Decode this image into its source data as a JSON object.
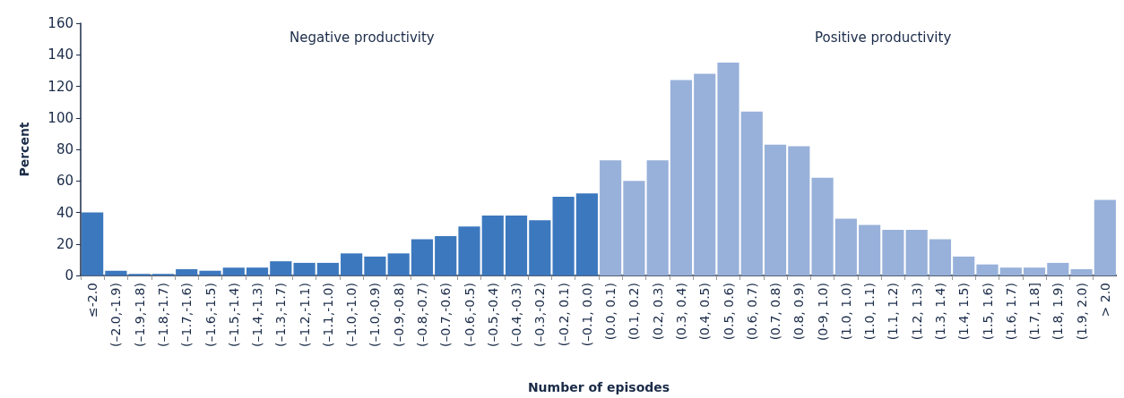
{
  "chart_data": {
    "type": "bar",
    "xlabel": "Number of episodes",
    "ylabel": "Percent",
    "annotations": [
      "Negative productivity",
      "Positive productivity"
    ],
    "categories": [
      "≤-2.0",
      "(–2.0,-1.9)",
      "(–1.9,-1.8)",
      "(–1.8,-1.7)",
      "(–1.7,-1.6)",
      "(–1.6,-1.5)",
      "(–1.5,-1.4)",
      "(–1.4,-1.3)",
      "(–1.3,-1.7)",
      "(–1.2,-1.1)",
      "(–1.1,-1.0)",
      "(–1.0,-1.0)",
      "(–1.0,-0.9)",
      "(–0.9,-0.8)",
      "(–0.8,-0.7)",
      "(–0.7,-0.6)",
      "(–0.6,-0.5)",
      "(–0.5,-0.4)",
      "(–0.4,-0.3)",
      "(–0.3,-0.2)",
      "(–0.2, 0.1)",
      "(–0.1, 0.0)",
      "(0.0, 0.1)",
      "(0.1, 0.2)",
      "(0.2, 0.3)",
      "(0.3, 0.4)",
      "(0.4, 0.5)",
      "(0.5, 0.6)",
      "(0.6, 0.7)",
      "(0.7, 0.8)",
      "(0.8, 0.9)",
      "(0-9, 1.0)",
      "(1.0, 1.0)",
      "(1.0, 1.1)",
      "(1.1, 1.2)",
      "(1.2, 1.3)",
      "(1.3, 1.4)",
      "(1.4, 1.5)",
      "(1.5, 1.6)",
      "(1.6, 1.7)",
      "(1.7, 1.8]",
      "(1.8, 1.9)",
      "(1.9, 2.0)",
      "> 2.0"
    ],
    "values": [
      40,
      3,
      1,
      1,
      4,
      3,
      5,
      5,
      9,
      8,
      8,
      14,
      12,
      14,
      23,
      25,
      31,
      38,
      38,
      35,
      50,
      52,
      73,
      60,
      73,
      124,
      128,
      135,
      104,
      83,
      82,
      62,
      36,
      32,
      29,
      29,
      23,
      12,
      7,
      5,
      5,
      8,
      4,
      48
    ],
    "colors": [
      "#3c78be",
      "#3c78be",
      "#3c78be",
      "#3c78be",
      "#3c78be",
      "#3c78be",
      "#3c78be",
      "#3c78be",
      "#3c78be",
      "#3c78be",
      "#3c78be",
      "#3c78be",
      "#3c78be",
      "#3c78be",
      "#3c78be",
      "#3c78be",
      "#3c78be",
      "#3c78be",
      "#3c78be",
      "#3c78be",
      "#3c78be",
      "#3c78be",
      "#98b1da",
      "#98b1da",
      "#98b1da",
      "#98b1da",
      "#98b1da",
      "#98b1da",
      "#98b1da",
      "#98b1da",
      "#98b1da",
      "#98b1da",
      "#98b1da",
      "#98b1da",
      "#98b1da",
      "#98b1da",
      "#98b1da",
      "#98b1da",
      "#98b1da",
      "#98b1da",
      "#98b1da",
      "#98b1da",
      "#98b1da",
      "#98b1da"
    ],
    "ylim": [
      0,
      160
    ],
    "yticks": [
      0,
      20,
      40,
      60,
      80,
      100,
      120,
      140,
      160
    ],
    "grid": false
  }
}
